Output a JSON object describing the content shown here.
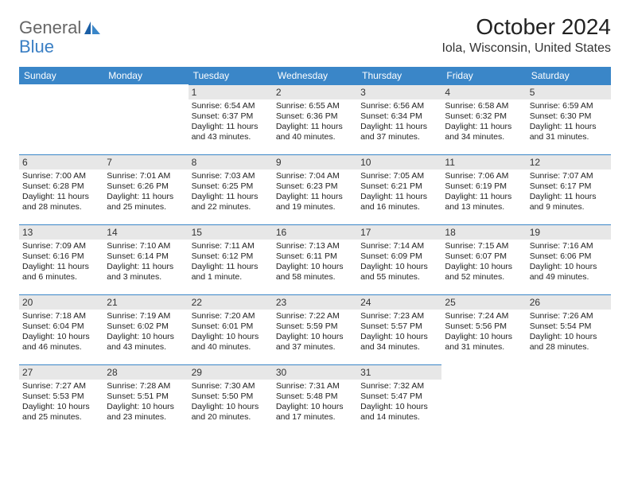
{
  "logo": {
    "text_left": "General",
    "text_right": "Blue"
  },
  "title": "October 2024",
  "location": "Iola, Wisconsin, United States",
  "headers": [
    "Sunday",
    "Monday",
    "Tuesday",
    "Wednesday",
    "Thursday",
    "Friday",
    "Saturday"
  ],
  "colors": {
    "header_bg": "#3a86c8",
    "header_fg": "#ffffff",
    "daynum_bg": "#e7e7e7",
    "daynum_border": "#3a86c8",
    "background": "#ffffff",
    "text": "#222222",
    "logo_blue": "#3a7fc4"
  },
  "font": {
    "family": "Arial",
    "cell_size_pt": 10.5,
    "header_size_pt": 12,
    "title_size_pt": 28,
    "location_size_pt": 16
  },
  "weeks": [
    [
      null,
      null,
      {
        "day": "1",
        "sunrise": "Sunrise: 6:54 AM",
        "sunset": "Sunset: 6:37 PM",
        "daylight": "Daylight: 11 hours and 43 minutes."
      },
      {
        "day": "2",
        "sunrise": "Sunrise: 6:55 AM",
        "sunset": "Sunset: 6:36 PM",
        "daylight": "Daylight: 11 hours and 40 minutes."
      },
      {
        "day": "3",
        "sunrise": "Sunrise: 6:56 AM",
        "sunset": "Sunset: 6:34 PM",
        "daylight": "Daylight: 11 hours and 37 minutes."
      },
      {
        "day": "4",
        "sunrise": "Sunrise: 6:58 AM",
        "sunset": "Sunset: 6:32 PM",
        "daylight": "Daylight: 11 hours and 34 minutes."
      },
      {
        "day": "5",
        "sunrise": "Sunrise: 6:59 AM",
        "sunset": "Sunset: 6:30 PM",
        "daylight": "Daylight: 11 hours and 31 minutes."
      }
    ],
    [
      {
        "day": "6",
        "sunrise": "Sunrise: 7:00 AM",
        "sunset": "Sunset: 6:28 PM",
        "daylight": "Daylight: 11 hours and 28 minutes."
      },
      {
        "day": "7",
        "sunrise": "Sunrise: 7:01 AM",
        "sunset": "Sunset: 6:26 PM",
        "daylight": "Daylight: 11 hours and 25 minutes."
      },
      {
        "day": "8",
        "sunrise": "Sunrise: 7:03 AM",
        "sunset": "Sunset: 6:25 PM",
        "daylight": "Daylight: 11 hours and 22 minutes."
      },
      {
        "day": "9",
        "sunrise": "Sunrise: 7:04 AM",
        "sunset": "Sunset: 6:23 PM",
        "daylight": "Daylight: 11 hours and 19 minutes."
      },
      {
        "day": "10",
        "sunrise": "Sunrise: 7:05 AM",
        "sunset": "Sunset: 6:21 PM",
        "daylight": "Daylight: 11 hours and 16 minutes."
      },
      {
        "day": "11",
        "sunrise": "Sunrise: 7:06 AM",
        "sunset": "Sunset: 6:19 PM",
        "daylight": "Daylight: 11 hours and 13 minutes."
      },
      {
        "day": "12",
        "sunrise": "Sunrise: 7:07 AM",
        "sunset": "Sunset: 6:17 PM",
        "daylight": "Daylight: 11 hours and 9 minutes."
      }
    ],
    [
      {
        "day": "13",
        "sunrise": "Sunrise: 7:09 AM",
        "sunset": "Sunset: 6:16 PM",
        "daylight": "Daylight: 11 hours and 6 minutes."
      },
      {
        "day": "14",
        "sunrise": "Sunrise: 7:10 AM",
        "sunset": "Sunset: 6:14 PM",
        "daylight": "Daylight: 11 hours and 3 minutes."
      },
      {
        "day": "15",
        "sunrise": "Sunrise: 7:11 AM",
        "sunset": "Sunset: 6:12 PM",
        "daylight": "Daylight: 11 hours and 1 minute."
      },
      {
        "day": "16",
        "sunrise": "Sunrise: 7:13 AM",
        "sunset": "Sunset: 6:11 PM",
        "daylight": "Daylight: 10 hours and 58 minutes."
      },
      {
        "day": "17",
        "sunrise": "Sunrise: 7:14 AM",
        "sunset": "Sunset: 6:09 PM",
        "daylight": "Daylight: 10 hours and 55 minutes."
      },
      {
        "day": "18",
        "sunrise": "Sunrise: 7:15 AM",
        "sunset": "Sunset: 6:07 PM",
        "daylight": "Daylight: 10 hours and 52 minutes."
      },
      {
        "day": "19",
        "sunrise": "Sunrise: 7:16 AM",
        "sunset": "Sunset: 6:06 PM",
        "daylight": "Daylight: 10 hours and 49 minutes."
      }
    ],
    [
      {
        "day": "20",
        "sunrise": "Sunrise: 7:18 AM",
        "sunset": "Sunset: 6:04 PM",
        "daylight": "Daylight: 10 hours and 46 minutes."
      },
      {
        "day": "21",
        "sunrise": "Sunrise: 7:19 AM",
        "sunset": "Sunset: 6:02 PM",
        "daylight": "Daylight: 10 hours and 43 minutes."
      },
      {
        "day": "22",
        "sunrise": "Sunrise: 7:20 AM",
        "sunset": "Sunset: 6:01 PM",
        "daylight": "Daylight: 10 hours and 40 minutes."
      },
      {
        "day": "23",
        "sunrise": "Sunrise: 7:22 AM",
        "sunset": "Sunset: 5:59 PM",
        "daylight": "Daylight: 10 hours and 37 minutes."
      },
      {
        "day": "24",
        "sunrise": "Sunrise: 7:23 AM",
        "sunset": "Sunset: 5:57 PM",
        "daylight": "Daylight: 10 hours and 34 minutes."
      },
      {
        "day": "25",
        "sunrise": "Sunrise: 7:24 AM",
        "sunset": "Sunset: 5:56 PM",
        "daylight": "Daylight: 10 hours and 31 minutes."
      },
      {
        "day": "26",
        "sunrise": "Sunrise: 7:26 AM",
        "sunset": "Sunset: 5:54 PM",
        "daylight": "Daylight: 10 hours and 28 minutes."
      }
    ],
    [
      {
        "day": "27",
        "sunrise": "Sunrise: 7:27 AM",
        "sunset": "Sunset: 5:53 PM",
        "daylight": "Daylight: 10 hours and 25 minutes."
      },
      {
        "day": "28",
        "sunrise": "Sunrise: 7:28 AM",
        "sunset": "Sunset: 5:51 PM",
        "daylight": "Daylight: 10 hours and 23 minutes."
      },
      {
        "day": "29",
        "sunrise": "Sunrise: 7:30 AM",
        "sunset": "Sunset: 5:50 PM",
        "daylight": "Daylight: 10 hours and 20 minutes."
      },
      {
        "day": "30",
        "sunrise": "Sunrise: 7:31 AM",
        "sunset": "Sunset: 5:48 PM",
        "daylight": "Daylight: 10 hours and 17 minutes."
      },
      {
        "day": "31",
        "sunrise": "Sunrise: 7:32 AM",
        "sunset": "Sunset: 5:47 PM",
        "daylight": "Daylight: 10 hours and 14 minutes."
      },
      null,
      null
    ]
  ]
}
